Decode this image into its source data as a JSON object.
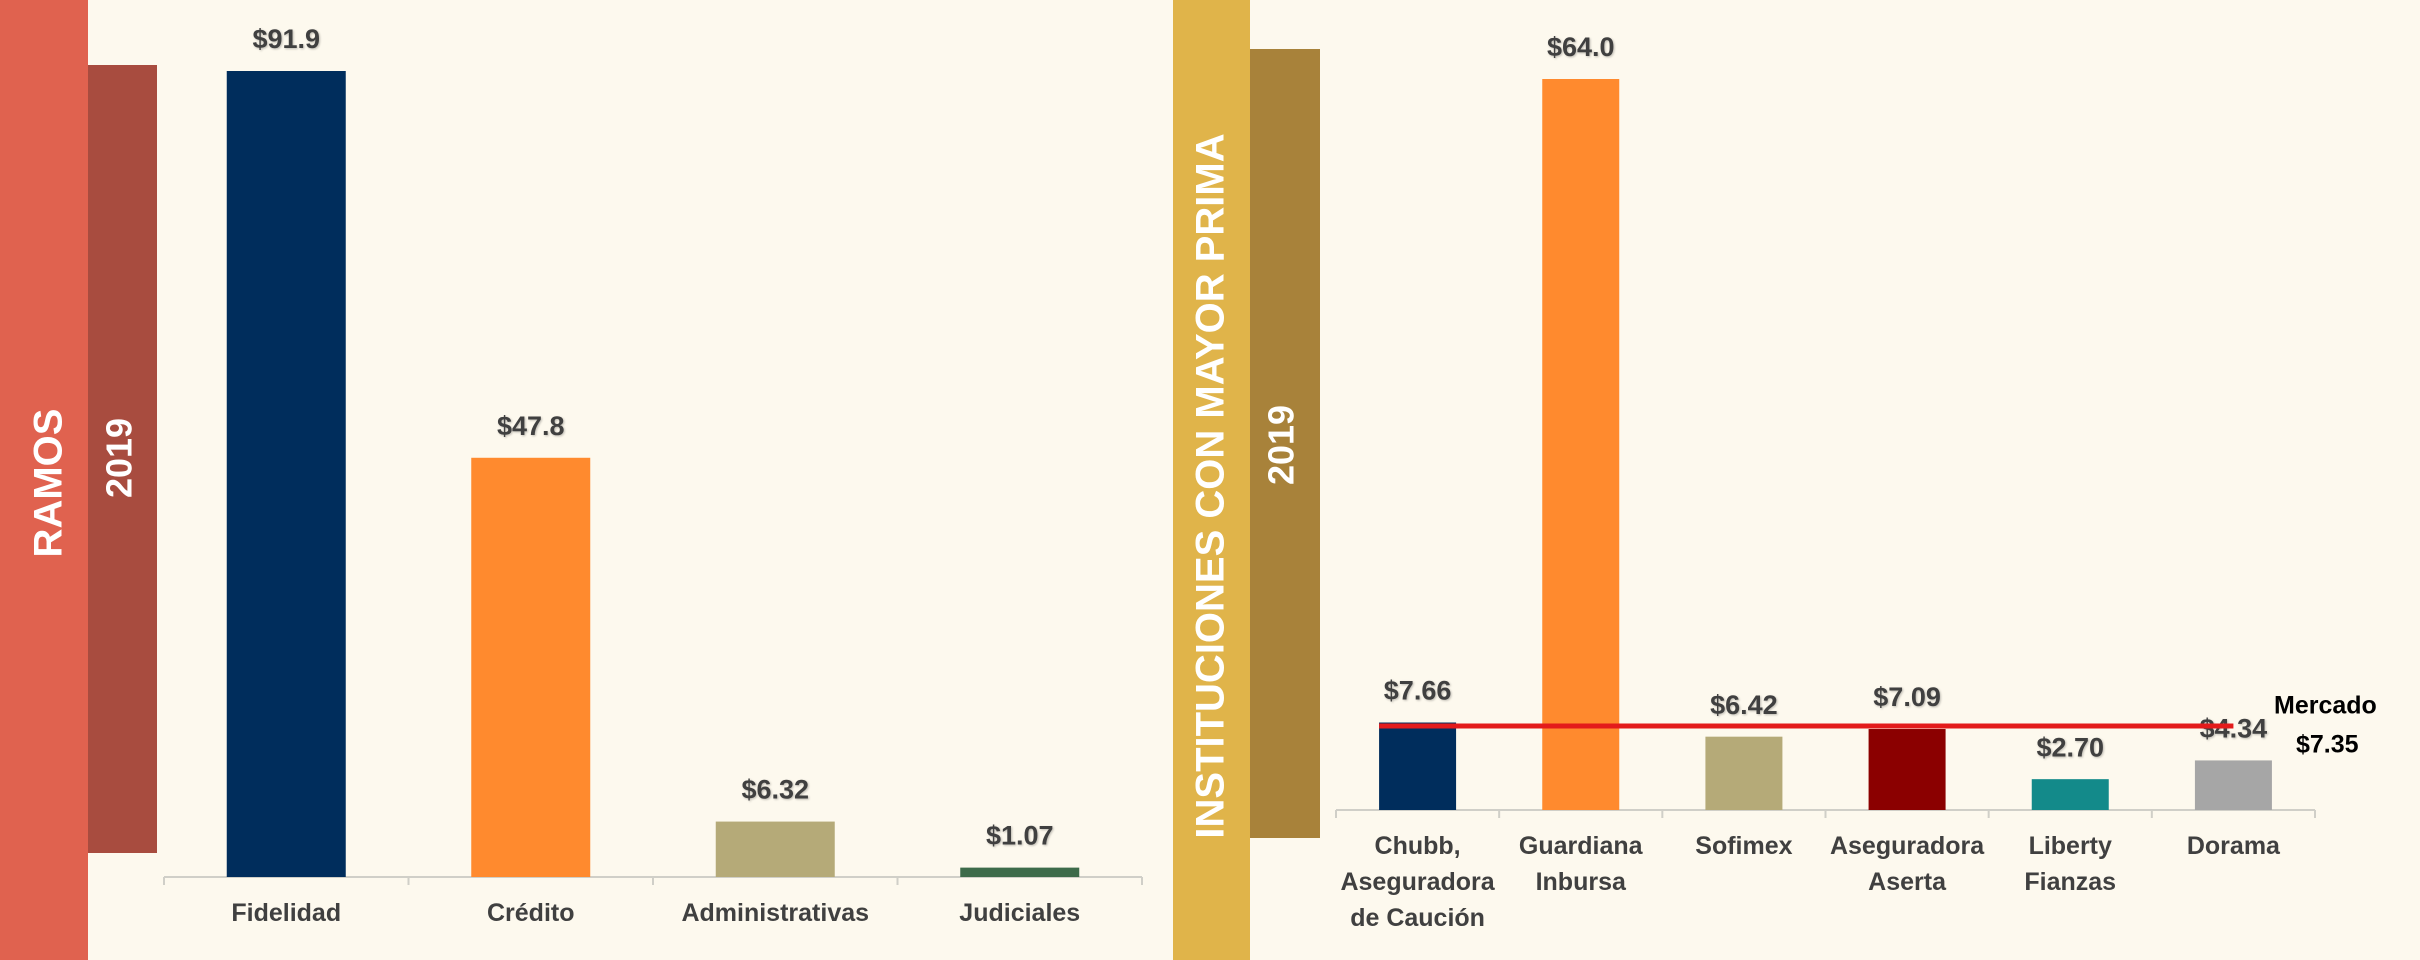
{
  "chart_data": [
    {
      "type": "bar",
      "title": "RAMOS",
      "subtitle": "2019",
      "categories": [
        "Fidelidad",
        "Crédito",
        "Administrativas",
        "Judiciales"
      ],
      "values": [
        91.9,
        47.8,
        6.32,
        1.07
      ],
      "value_labels": [
        "$91.9",
        "$47.8",
        "$6.32",
        "$1.07"
      ],
      "colors": [
        "#002d5c",
        "#ff8a2e",
        "#b5aa78",
        "#3d6b4a"
      ]
    },
    {
      "type": "bar",
      "title": "INSTITUCIONES CON MAYOR PRIMA",
      "subtitle": "2019",
      "categories": [
        "Chubb,\nAseguradora\nde Caución",
        "Guardiana\nInbursa",
        "Sofimex",
        "Aseguradora\nAserta",
        "Liberty\nFianzas",
        "Dorama"
      ],
      "values": [
        7.66,
        64.0,
        6.42,
        7.09,
        2.7,
        4.34
      ],
      "value_labels": [
        "$7.66",
        "$64.0",
        "$6.42",
        "$7.09",
        "$2.70",
        "$4.34"
      ],
      "colors": [
        "#002d5c",
        "#ff8a2e",
        "#b5aa78",
        "#8b0000",
        "#138a8a",
        "#a6a6a6"
      ],
      "reference_line": {
        "label": "Mercado",
        "value": 7.35,
        "value_label": "$7.35",
        "color": "#e31b1b"
      }
    }
  ]
}
